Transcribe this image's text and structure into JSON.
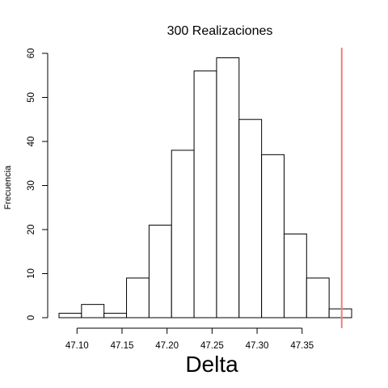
{
  "chart_data": {
    "type": "bar",
    "title": "300 Realizaciones",
    "xlabel": "Delta",
    "ylabel": "Frecuencia",
    "bin_width": 0.025,
    "bins": [
      {
        "x0": 47.08,
        "x1": 47.105,
        "count": 1
      },
      {
        "x0": 47.105,
        "x1": 47.13,
        "count": 3
      },
      {
        "x0": 47.13,
        "x1": 47.155,
        "count": 1
      },
      {
        "x0": 47.155,
        "x1": 47.18,
        "count": 9
      },
      {
        "x0": 47.18,
        "x1": 47.205,
        "count": 21
      },
      {
        "x0": 47.205,
        "x1": 47.23,
        "count": 38
      },
      {
        "x0": 47.23,
        "x1": 47.255,
        "count": 56
      },
      {
        "x0": 47.255,
        "x1": 47.28,
        "count": 59
      },
      {
        "x0": 47.28,
        "x1": 47.305,
        "count": 45
      },
      {
        "x0": 47.305,
        "x1": 47.33,
        "count": 37
      },
      {
        "x0": 47.33,
        "x1": 47.355,
        "count": 19
      },
      {
        "x0": 47.355,
        "x1": 47.38,
        "count": 9
      },
      {
        "x0": 47.38,
        "x1": 47.405,
        "count": 2
      }
    ],
    "xlim": [
      47.08,
      47.4
    ],
    "ylim": [
      0,
      60
    ],
    "xticks": [
      "47.10",
      "47.15",
      "47.20",
      "47.25",
      "47.30",
      "47.35"
    ],
    "xtick_values": [
      47.1,
      47.15,
      47.2,
      47.25,
      47.3,
      47.35
    ],
    "yticks": [
      "0",
      "10",
      "20",
      "30",
      "40",
      "50",
      "60"
    ],
    "ytick_values": [
      0,
      10,
      20,
      30,
      40,
      50,
      60
    ],
    "reference_line": {
      "x": 47.394,
      "color": "#f08080"
    },
    "bar_fill": "#ffffff",
    "bar_stroke": "#000000",
    "grid": false,
    "legend": "none"
  }
}
